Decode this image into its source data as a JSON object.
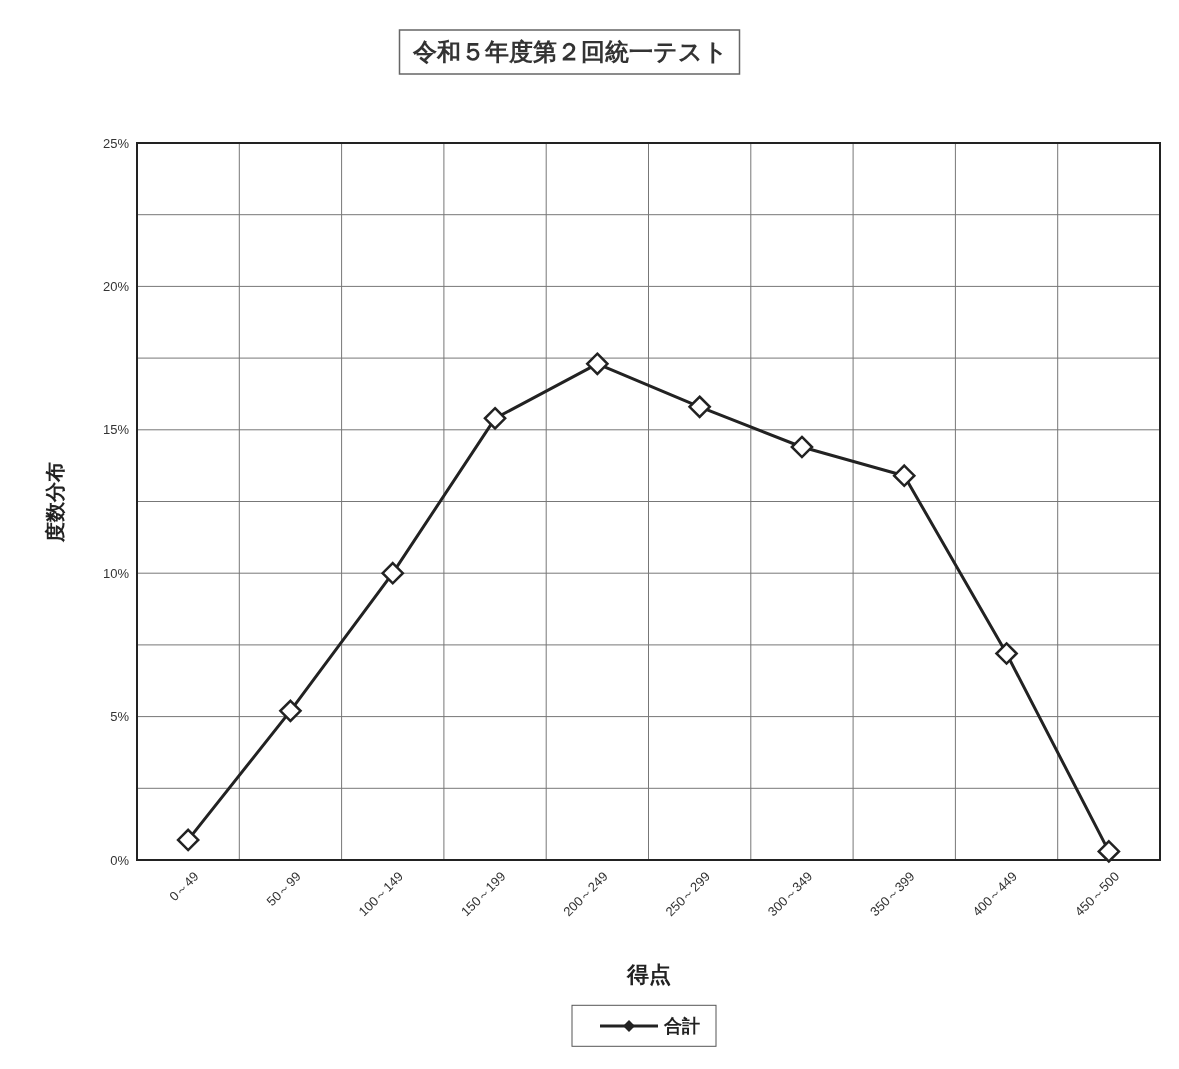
{
  "chart_data": {
    "type": "line",
    "title": "令和５年度第２回統一テスト",
    "xlabel": "得点",
    "ylabel": "度数分布",
    "categories": [
      "0～49",
      "50～99",
      "100～149",
      "150～199",
      "200～249",
      "250～299",
      "300～349",
      "350～399",
      "400～449",
      "450～500"
    ],
    "series": [
      {
        "name": "合計",
        "color": "#222222",
        "values": [
          0.7,
          5.2,
          10.0,
          15.4,
          17.3,
          15.8,
          14.4,
          13.4,
          7.2,
          0.3
        ]
      }
    ],
    "ylim": [
      0,
      25
    ],
    "yticks": [
      {
        "value": 0,
        "label": "0%"
      },
      {
        "value": 2.5,
        "label": null
      },
      {
        "value": 5,
        "label": "5%"
      },
      {
        "value": 7.5,
        "label": null
      },
      {
        "value": 10,
        "label": "10%"
      },
      {
        "value": 12.5,
        "label": null
      },
      {
        "value": 15,
        "label": "15%"
      },
      {
        "value": 17.5,
        "label": null
      },
      {
        "value": 20,
        "label": "20%"
      },
      {
        "value": 22.5,
        "label": null
      },
      {
        "value": 25,
        "label": "25%"
      }
    ],
    "grid": true,
    "legend": "bottom",
    "marker": "diamond",
    "line_style": "solid"
  }
}
